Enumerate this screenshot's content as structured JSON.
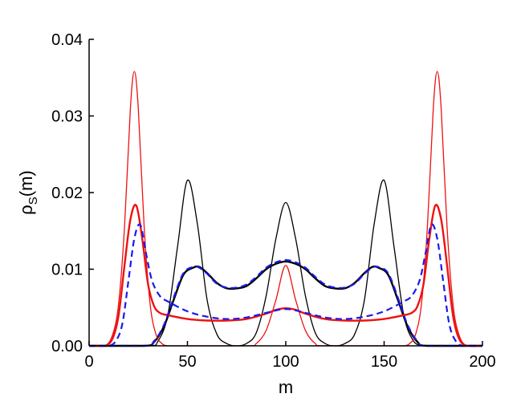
{
  "chart_data": {
    "type": "line",
    "xlabel": "m",
    "ylabel": "ρS(m)",
    "ylabel_main": "ρ",
    "ylabel_sub": "S",
    "ylabel_arg": "(m)",
    "xlim": [
      0,
      200
    ],
    "ylim": [
      0,
      0.04
    ],
    "x_ticks": [
      0,
      50,
      100,
      150,
      200
    ],
    "x_tick_labels": [
      "0",
      "50",
      "100",
      "150",
      "200"
    ],
    "y_ticks": [
      0,
      0.01,
      0.02,
      0.03,
      0.04
    ],
    "y_tick_labels": [
      "0.00",
      "0.01",
      "0.02",
      "0.03",
      "0.04"
    ],
    "grid": false,
    "series": [
      {
        "color": "#000000",
        "style": "thin",
        "x": [
          0,
          30,
          35,
          40,
          45,
          50,
          55,
          60,
          65,
          70,
          75,
          80,
          85,
          90,
          95,
          100,
          105,
          110,
          115,
          120,
          125,
          130,
          135,
          140,
          145,
          150,
          155,
          160,
          165,
          170,
          175,
          200
        ],
        "y": [
          0,
          0,
          0.0006,
          0.004,
          0.013,
          0.0216,
          0.016,
          0.006,
          0.0015,
          0.0003,
          0,
          0.0003,
          0.0017,
          0.0065,
          0.014,
          0.0187,
          0.014,
          0.0065,
          0.0017,
          0.0003,
          0,
          0.0003,
          0.0015,
          0.006,
          0.016,
          0.0216,
          0.013,
          0.004,
          0.0006,
          0,
          0,
          0
        ]
      },
      {
        "color": "#000000",
        "style": "thick",
        "x": [
          0,
          28,
          33,
          38,
          43,
          48,
          53,
          56,
          60,
          65,
          70,
          75,
          80,
          85,
          90,
          95,
          100,
          105,
          110,
          115,
          120,
          125,
          130,
          135,
          140,
          144,
          147,
          152,
          157,
          162,
          167,
          172,
          200
        ],
        "y": [
          0,
          0,
          0.0005,
          0.0025,
          0.006,
          0.0093,
          0.0102,
          0.0103,
          0.0095,
          0.0082,
          0.0075,
          0.0075,
          0.0078,
          0.0088,
          0.01,
          0.0107,
          0.011,
          0.0107,
          0.01,
          0.0088,
          0.0078,
          0.0075,
          0.0075,
          0.0082,
          0.0095,
          0.0103,
          0.0102,
          0.0093,
          0.006,
          0.0025,
          0.0005,
          0,
          0
        ]
      },
      {
        "color": "#ee1111",
        "style": "thin",
        "x": [
          0,
          8,
          12,
          15,
          18,
          21,
          23,
          25,
          28,
          31,
          34,
          37,
          40,
          45,
          80,
          85,
          90,
          95,
          100,
          105,
          110,
          115,
          120,
          155,
          160,
          163,
          166,
          169,
          172,
          175,
          177,
          179,
          182,
          185,
          188,
          192,
          200
        ],
        "y": [
          0,
          0,
          0.0015,
          0.0055,
          0.0155,
          0.031,
          0.0358,
          0.031,
          0.0155,
          0.0055,
          0.0015,
          0.0003,
          0,
          0,
          0,
          0.0003,
          0.002,
          0.006,
          0.0105,
          0.006,
          0.002,
          0.0003,
          0,
          0,
          0,
          0.0003,
          0.0015,
          0.0055,
          0.0155,
          0.031,
          0.0358,
          0.031,
          0.0155,
          0.0055,
          0.0015,
          0,
          0
        ]
      },
      {
        "color": "#ee1111",
        "style": "thick",
        "x": [
          0,
          8,
          12,
          15,
          18,
          21,
          24,
          27,
          30,
          33,
          36,
          40,
          50,
          60,
          70,
          80,
          90,
          95,
          100,
          105,
          110,
          120,
          130,
          140,
          150,
          160,
          164,
          167,
          170,
          173,
          176,
          179,
          182,
          185,
          188,
          192,
          200
        ],
        "y": [
          0,
          0,
          0.001,
          0.004,
          0.0105,
          0.0165,
          0.0183,
          0.014,
          0.008,
          0.0052,
          0.0043,
          0.004,
          0.0035,
          0.0033,
          0.0033,
          0.0035,
          0.0042,
          0.0047,
          0.0049,
          0.0047,
          0.0042,
          0.0035,
          0.0033,
          0.0033,
          0.0035,
          0.004,
          0.0043,
          0.0052,
          0.008,
          0.014,
          0.0183,
          0.0165,
          0.0105,
          0.004,
          0.001,
          0,
          0
        ]
      },
      {
        "color": "#1a1aee",
        "style": "dashed",
        "x": [
          0,
          10,
          14,
          17,
          20,
          23,
          26,
          29,
          32,
          36,
          40,
          50,
          60,
          70,
          80,
          90,
          100,
          110,
          120,
          130,
          140,
          150,
          160,
          164,
          168,
          171,
          174,
          177,
          180,
          183,
          186,
          190,
          200
        ],
        "y": [
          0,
          0,
          0.0008,
          0.003,
          0.0085,
          0.014,
          0.0158,
          0.012,
          0.0085,
          0.0065,
          0.0058,
          0.0045,
          0.0038,
          0.0035,
          0.0037,
          0.0043,
          0.0048,
          0.0043,
          0.0037,
          0.0035,
          0.0038,
          0.0045,
          0.0058,
          0.0065,
          0.0085,
          0.012,
          0.0158,
          0.014,
          0.0085,
          0.003,
          0.0008,
          0,
          0
        ]
      },
      {
        "color": "#1a1aee",
        "style": "dashed",
        "x": [
          0,
          28,
          33,
          38,
          43,
          48,
          53,
          56,
          60,
          65,
          70,
          75,
          80,
          85,
          90,
          95,
          100,
          105,
          110,
          115,
          120,
          125,
          130,
          135,
          140,
          144,
          147,
          152,
          157,
          162,
          167,
          172,
          200
        ],
        "y": [
          0,
          0,
          0.0006,
          0.0027,
          0.0063,
          0.0095,
          0.0103,
          0.0102,
          0.0094,
          0.0081,
          0.0076,
          0.0076,
          0.008,
          0.009,
          0.0102,
          0.0109,
          0.0112,
          0.0109,
          0.0102,
          0.009,
          0.008,
          0.0076,
          0.0076,
          0.0081,
          0.0094,
          0.0102,
          0.0103,
          0.0095,
          0.0063,
          0.0027,
          0.0006,
          0,
          0
        ]
      }
    ]
  }
}
